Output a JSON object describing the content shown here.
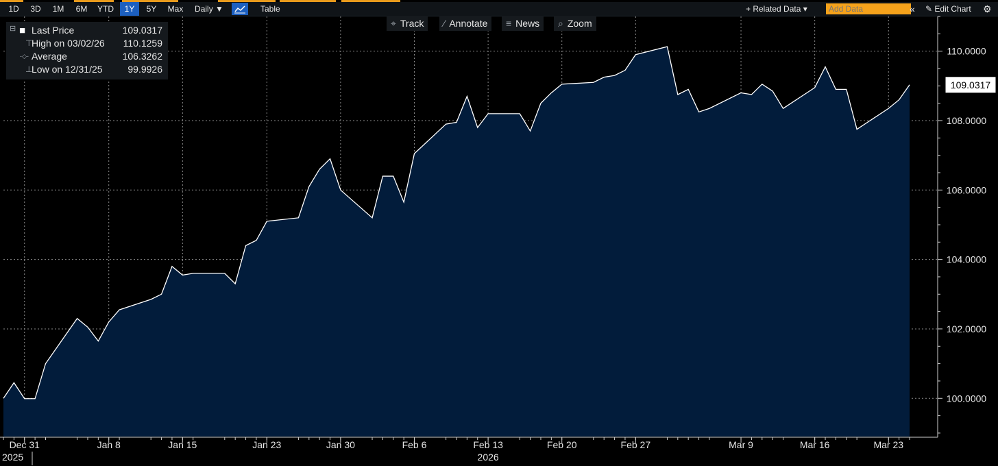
{
  "toolbar": {
    "ranges": [
      "1D",
      "3D",
      "1M",
      "6M",
      "YTD",
      "1Y",
      "5Y",
      "Max"
    ],
    "active_range": "1Y",
    "frequency": "Daily ▼",
    "chart_type_icon": "line-chart-icon",
    "table_label": "Table",
    "related_data_label": "+ Related Data ▾",
    "add_data_placeholder": "Add Data",
    "collapse_icon": "«",
    "edit_chart_label": "✎ Edit Chart",
    "settings_icon": "⚙"
  },
  "tools": [
    {
      "icon": "⌖",
      "label": "Track"
    },
    {
      "icon": "∕",
      "label": "Annotate"
    },
    {
      "icon": "≡",
      "label": "News"
    },
    {
      "icon": "⌕",
      "label": "Zoom"
    }
  ],
  "legend": {
    "collapse_icon": "⊟",
    "rows": [
      {
        "icon": "■",
        "name": "Last Price",
        "value": "109.0317"
      },
      {
        "icon": "⊤",
        "name": "High on 03/02/26",
        "value": "110.1259"
      },
      {
        "icon": "-◇-",
        "name": "Average",
        "value": "106.3262"
      },
      {
        "icon": "⊥",
        "name": "Low on 12/31/25",
        "value": "99.9926"
      }
    ]
  },
  "colors": {
    "background": "#000000",
    "area_fill": "#021c3b",
    "line": "#ffffff",
    "grid": "#8a8a8a",
    "accent": "#e89a1c",
    "active_tab": "#1c5fbf"
  },
  "chart_data": {
    "type": "area",
    "x": [
      "2025-12-29",
      "2025-12-30",
      "2025-12-31",
      "2026-01-01",
      "2026-01-02",
      "2026-01-05",
      "2026-01-06",
      "2026-01-07",
      "2026-01-08",
      "2026-01-09",
      "2026-01-12",
      "2026-01-13",
      "2026-01-14",
      "2026-01-15",
      "2026-01-16",
      "2026-01-19",
      "2026-01-20",
      "2026-01-21",
      "2026-01-22",
      "2026-01-23",
      "2026-01-26",
      "2026-01-27",
      "2026-01-28",
      "2026-01-29",
      "2026-01-30",
      "2026-02-02",
      "2026-02-03",
      "2026-02-04",
      "2026-02-05",
      "2026-02-06",
      "2026-02-09",
      "2026-02-10",
      "2026-02-11",
      "2026-02-12",
      "2026-02-13",
      "2026-02-16",
      "2026-02-17",
      "2026-02-18",
      "2026-02-19",
      "2026-02-20",
      "2026-02-23",
      "2026-02-24",
      "2026-02-25",
      "2026-02-26",
      "2026-02-27",
      "2026-03-02",
      "2026-03-03",
      "2026-03-04",
      "2026-03-05",
      "2026-03-06",
      "2026-03-09",
      "2026-03-10",
      "2026-03-11",
      "2026-03-12",
      "2026-03-13",
      "2026-03-16",
      "2026-03-17",
      "2026-03-18",
      "2026-03-19",
      "2026-03-20",
      "2026-03-23",
      "2026-03-24",
      "2026-03-25"
    ],
    "values": [
      100.0,
      100.45,
      99.99,
      99.99,
      101.0,
      102.3,
      102.05,
      101.65,
      102.2,
      102.55,
      102.85,
      103.0,
      103.8,
      103.55,
      103.6,
      103.6,
      103.3,
      104.4,
      104.55,
      105.1,
      105.2,
      106.1,
      106.6,
      106.9,
      106.0,
      105.2,
      106.4,
      106.4,
      105.65,
      107.05,
      107.9,
      107.95,
      108.7,
      107.8,
      108.2,
      108.2,
      107.7,
      108.5,
      108.8,
      109.05,
      109.1,
      109.25,
      109.3,
      109.45,
      109.9,
      110.13,
      108.75,
      108.9,
      108.25,
      108.35,
      108.8,
      108.75,
      109.05,
      108.85,
      108.35,
      108.95,
      109.55,
      108.9,
      108.9,
      107.75,
      108.35,
      108.6,
      109.03
    ],
    "x_tick_labels": [
      "Dec 31",
      "Jan 8",
      "Jan 15",
      "Jan 23",
      "Jan 30",
      "Feb 6",
      "Feb 13",
      "Feb 20",
      "Feb 27",
      "Mar 9",
      "Mar 16",
      "Mar 23"
    ],
    "x_tick_dates": [
      "2025-12-31",
      "2026-01-08",
      "2026-01-15",
      "2026-01-23",
      "2026-01-30",
      "2026-02-06",
      "2026-02-13",
      "2026-02-20",
      "2026-02-27",
      "2026-03-09",
      "2026-03-16",
      "2026-03-23"
    ],
    "year_labels": [
      {
        "label": "2025",
        "date": "2025-12-29"
      },
      {
        "label": "2026",
        "date": "2026-02-13"
      }
    ],
    "y_ticks": [
      "100.0000",
      "102.0000",
      "104.0000",
      "106.0000",
      "108.0000",
      "110.0000"
    ],
    "ylim": [
      98.9,
      111.0
    ],
    "last_value_label": "109.0317",
    "grid": true,
    "legend_position": "top-left"
  }
}
